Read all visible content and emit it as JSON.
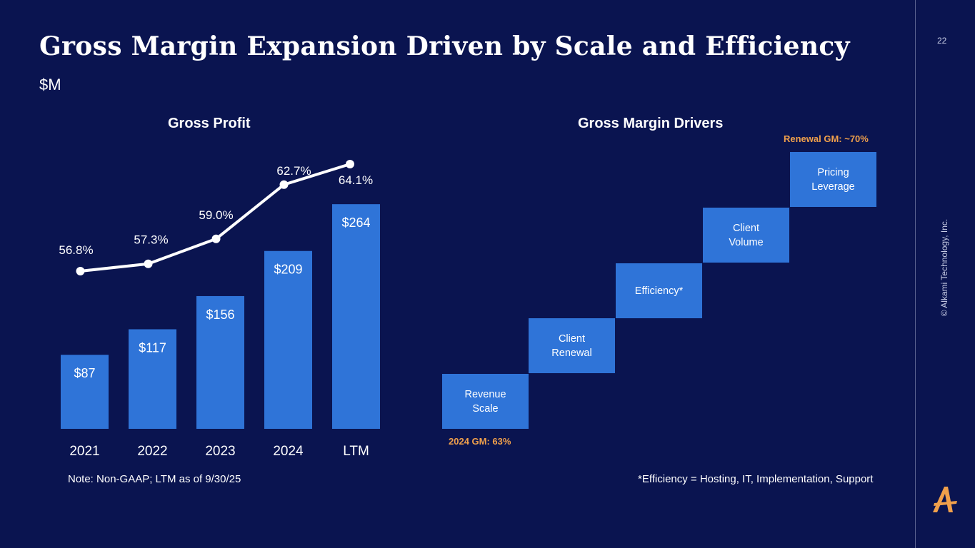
{
  "page": {
    "title": "Gross Margin Expansion Driven by Scale and Efficiency",
    "subtitle": "$M",
    "page_number": "22",
    "copyright": "© Alkami Technology, Inc."
  },
  "colors": {
    "background": "#0a1450",
    "bar": "#2f74d8",
    "line": "#ffffff",
    "accent_orange": "#f0a04b"
  },
  "chart_data": {
    "type": "bar",
    "title": "Gross Profit",
    "categories": [
      "2021",
      "2022",
      "2023",
      "2024",
      "LTM"
    ],
    "values": [
      87,
      117,
      156,
      209,
      264
    ],
    "bar_labels": [
      "$87",
      "$117",
      "$156",
      "$209",
      "$264"
    ],
    "ylim": [
      0,
      270
    ],
    "line_series": {
      "values": [
        56.8,
        57.3,
        59.0,
        62.7,
        64.1
      ],
      "labels": [
        "56.8%",
        "57.3%",
        "59.0%",
        "62.7%",
        "64.1%"
      ],
      "ylim": [
        50,
        66
      ]
    },
    "grid": false,
    "note": "Note: Non-GAAP; LTM as of 9/30/25"
  },
  "drivers": {
    "title": "Gross Margin Drivers",
    "steps": [
      "Revenue\nScale",
      "Client\nRenewal",
      "Efficiency*",
      "Client\nVolume",
      "Pricing\nLeverage"
    ],
    "start_label": "2024 GM: 63%",
    "end_label": "Renewal GM: ~70%",
    "footnote": "*Efficiency = Hosting, IT, Implementation, Support"
  }
}
